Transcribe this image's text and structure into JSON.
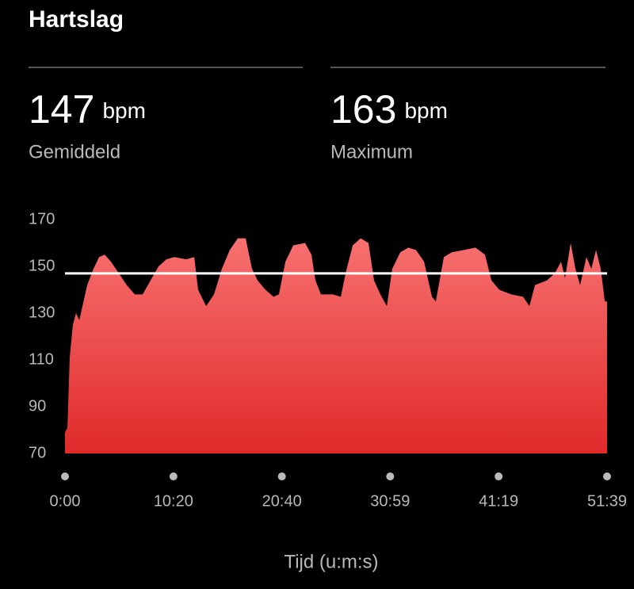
{
  "header": {
    "title": "Hartslag"
  },
  "stats": [
    {
      "value": 147,
      "unit": "bpm",
      "label": "Gemiddeld"
    },
    {
      "value": 163,
      "unit": "bpm",
      "label": "Maximum"
    }
  ],
  "chart_data": {
    "type": "area",
    "x_label": "Tijd (u:m:s)",
    "x": [
      0,
      14,
      27,
      45,
      63,
      82,
      100,
      127,
      163,
      195,
      227,
      263,
      308,
      353,
      399,
      444,
      489,
      535,
      580,
      625,
      693,
      739,
      761,
      807,
      852,
      897,
      942,
      988,
      1033,
      1069,
      1101,
      1146,
      1192,
      1223,
      1260,
      1305,
      1373,
      1409,
      1432,
      1463,
      1532,
      1577,
      1604,
      1645,
      1690,
      1735,
      1767,
      1803,
      1840,
      1871,
      1917,
      1962,
      2007,
      2053,
      2098,
      2120,
      2166,
      2211,
      2279,
      2347,
      2401,
      2438,
      2483,
      2551,
      2619,
      2655,
      2687,
      2755,
      2800,
      2836,
      2859,
      2891,
      2918,
      2945,
      2981,
      3009,
      3036,
      3063,
      3086,
      3099
    ],
    "values": [
      79,
      81,
      111,
      125,
      130,
      127,
      133,
      142,
      149,
      154,
      155,
      152,
      147,
      142,
      138,
      138,
      144,
      150,
      153,
      154,
      153,
      154,
      140,
      133,
      138,
      149,
      157,
      162,
      162,
      149,
      144,
      140,
      137,
      138,
      152,
      159,
      160,
      155,
      144,
      138,
      138,
      137,
      147,
      159,
      162,
      160,
      144,
      138,
      133,
      149,
      156,
      158,
      157,
      152,
      137,
      135,
      154,
      156,
      157,
      158,
      155,
      144,
      140,
      138,
      137,
      133,
      142,
      144,
      147,
      152,
      145,
      160,
      149,
      142,
      154,
      149,
      157,
      149,
      135,
      135
    ],
    "xlim": [
      0,
      3099
    ],
    "xticks": [
      {
        "value": 0,
        "label": "0:00"
      },
      {
        "value": 620,
        "label": "10:20"
      },
      {
        "value": 1240,
        "label": "20:40"
      },
      {
        "value": 1859,
        "label": "30:59"
      },
      {
        "value": 2479,
        "label": "41:19"
      },
      {
        "value": 3099,
        "label": "51:39"
      }
    ],
    "ylim": [
      70,
      170
    ],
    "yticks": [
      70,
      90,
      110,
      130,
      150,
      170
    ],
    "colors": [
      "#f77070",
      "#e02a2a"
    ],
    "reference_line_color": "#ffffff"
  }
}
